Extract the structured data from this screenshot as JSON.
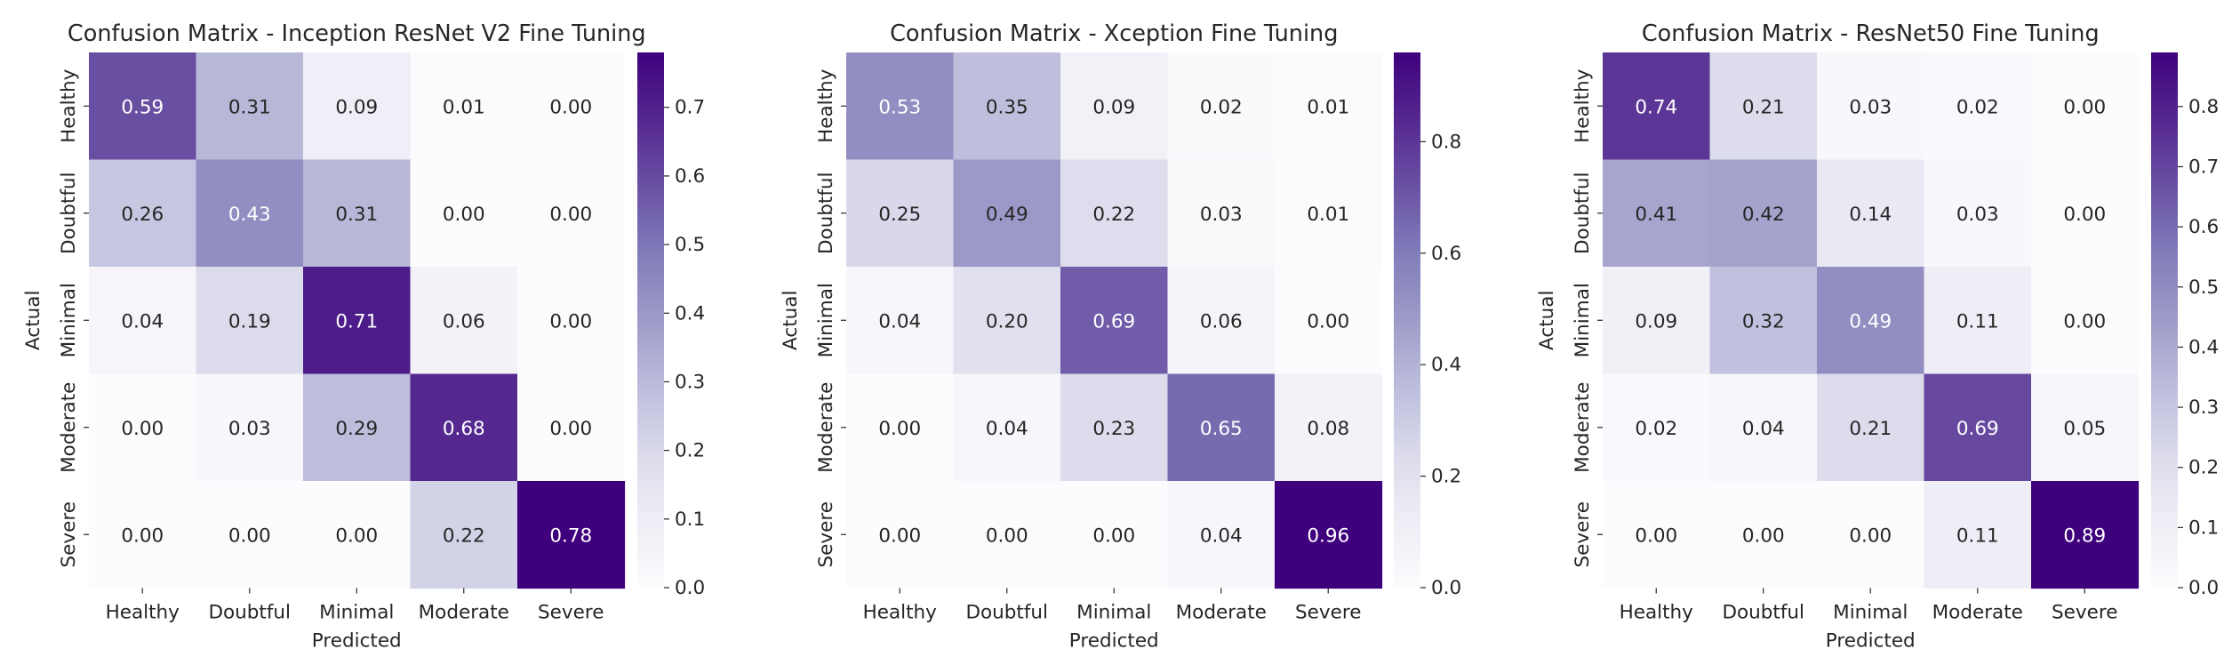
{
  "chart_data": [
    {
      "type": "heatmap",
      "title": "Confusion Matrix - Inception ResNet V2 Fine Tuning",
      "xlabel": "Predicted",
      "ylabel": "Actual",
      "x_categories": [
        "Healthy",
        "Doubtful",
        "Minimal",
        "Moderate",
        "Severe"
      ],
      "y_categories": [
        "Healthy",
        "Doubtful",
        "Minimal",
        "Moderate",
        "Severe"
      ],
      "values": [
        [
          0.59,
          0.31,
          0.09,
          0.01,
          0.0
        ],
        [
          0.26,
          0.43,
          0.31,
          0.0,
          0.0
        ],
        [
          0.04,
          0.19,
          0.71,
          0.06,
          0.0
        ],
        [
          0.0,
          0.03,
          0.29,
          0.68,
          0.0
        ],
        [
          0.0,
          0.0,
          0.0,
          0.22,
          0.78
        ]
      ],
      "value_labels": [
        [
          "0.59",
          "0.31",
          "0.09",
          "0.01",
          "0.00"
        ],
        [
          "0.26",
          "0.43",
          "0.31",
          "0.00",
          "0.00"
        ],
        [
          "0.04",
          "0.19",
          "0.71",
          "0.06",
          "0.00"
        ],
        [
          "0.00",
          "0.03",
          "0.29",
          "0.68",
          "0.00"
        ],
        [
          "0.00",
          "0.00",
          "0.00",
          "0.22",
          "0.78"
        ]
      ],
      "colorbar": {
        "min": 0.0,
        "max": 0.78,
        "colormap": "Purples",
        "ticks": [
          0.0,
          0.1,
          0.2,
          0.3,
          0.4,
          0.5,
          0.6,
          0.7
        ],
        "tick_labels": [
          "0.0",
          "0.1",
          "0.2",
          "0.3",
          "0.4",
          "0.5",
          "0.6",
          "0.7"
        ]
      }
    },
    {
      "type": "heatmap",
      "title": "Confusion Matrix - Xception Fine Tuning",
      "xlabel": "Predicted",
      "ylabel": "Actual",
      "x_categories": [
        "Healthy",
        "Doubtful",
        "Minimal",
        "Moderate",
        "Severe"
      ],
      "y_categories": [
        "Healthy",
        "Doubtful",
        "Minimal",
        "Moderate",
        "Severe"
      ],
      "values": [
        [
          0.53,
          0.35,
          0.09,
          0.02,
          0.01
        ],
        [
          0.25,
          0.49,
          0.22,
          0.03,
          0.01
        ],
        [
          0.04,
          0.2,
          0.69,
          0.06,
          0.0
        ],
        [
          0.0,
          0.04,
          0.23,
          0.65,
          0.08
        ],
        [
          0.0,
          0.0,
          0.0,
          0.04,
          0.96
        ]
      ],
      "value_labels": [
        [
          "0.53",
          "0.35",
          "0.09",
          "0.02",
          "0.01"
        ],
        [
          "0.25",
          "0.49",
          "0.22",
          "0.03",
          "0.01"
        ],
        [
          "0.04",
          "0.20",
          "0.69",
          "0.06",
          "0.00"
        ],
        [
          "0.00",
          "0.04",
          "0.23",
          "0.65",
          "0.08"
        ],
        [
          "0.00",
          "0.00",
          "0.00",
          "0.04",
          "0.96"
        ]
      ],
      "colorbar": {
        "min": 0.0,
        "max": 0.96,
        "colormap": "Purples",
        "ticks": [
          0.0,
          0.2,
          0.4,
          0.6,
          0.8
        ],
        "tick_labels": [
          "0.0",
          "0.2",
          "0.4",
          "0.6",
          "0.8"
        ]
      }
    },
    {
      "type": "heatmap",
      "title": "Confusion Matrix - ResNet50 Fine Tuning",
      "xlabel": "Predicted",
      "ylabel": "Actual",
      "x_categories": [
        "Healthy",
        "Doubtful",
        "Minimal",
        "Moderate",
        "Severe"
      ],
      "y_categories": [
        "Healthy",
        "Doubtful",
        "Minimal",
        "Moderate",
        "Severe"
      ],
      "values": [
        [
          0.74,
          0.21,
          0.03,
          0.02,
          0.0
        ],
        [
          0.41,
          0.42,
          0.14,
          0.03,
          0.0
        ],
        [
          0.09,
          0.32,
          0.49,
          0.11,
          0.0
        ],
        [
          0.02,
          0.04,
          0.21,
          0.69,
          0.05
        ],
        [
          0.0,
          0.0,
          0.0,
          0.11,
          0.89
        ]
      ],
      "value_labels": [
        [
          "0.74",
          "0.21",
          "0.03",
          "0.02",
          "0.00"
        ],
        [
          "0.41",
          "0.42",
          "0.14",
          "0.03",
          "0.00"
        ],
        [
          "0.09",
          "0.32",
          "0.49",
          "0.11",
          "0.00"
        ],
        [
          "0.02",
          "0.04",
          "0.21",
          "0.69",
          "0.05"
        ],
        [
          "0.00",
          "0.00",
          "0.00",
          "0.11",
          "0.89"
        ]
      ],
      "colorbar": {
        "min": 0.0,
        "max": 0.89,
        "colormap": "Purples",
        "ticks": [
          0.0,
          0.1,
          0.2,
          0.3,
          0.4,
          0.5,
          0.6,
          0.7,
          0.8
        ],
        "tick_labels": [
          "0.0",
          "0.1",
          "0.2",
          "0.3",
          "0.4",
          "0.5",
          "0.6",
          "0.7",
          "0.8"
        ]
      }
    }
  ]
}
